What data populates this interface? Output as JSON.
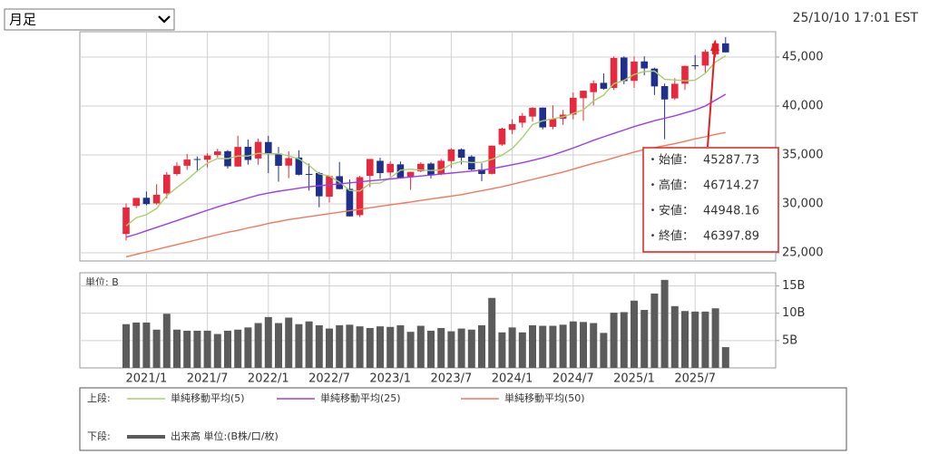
{
  "period_selector": "月足",
  "timestamp": "25/10/10 17:01 EST",
  "tooltip": {
    "labels": [
      "・始値：",
      "・高値：",
      "・安値：",
      "・終値："
    ]
  },
  "chart_data": [
    {
      "type": "candlestick",
      "up_color": "#e8283c",
      "down_color": "#1f2f8c",
      "legend_label": "上段:",
      "ylim": [
        24170,
        47590
      ],
      "yticks": [
        {
          "value": 25000,
          "label": "25,000"
        },
        {
          "value": 30000,
          "label": "30,000"
        },
        {
          "value": 35000,
          "label": "35,000"
        },
        {
          "value": 40000,
          "label": "40,000"
        },
        {
          "value": 45000,
          "label": "45,000"
        }
      ],
      "grid": true,
      "open": [
        26925,
        29798,
        30627,
        30055,
        31065,
        33054,
        33904,
        34584,
        34507,
        34992,
        35387,
        33820,
        35833,
        34640,
        36322,
        35152,
        33913,
        34742,
        33062,
        33156,
        30737,
        32829,
        31533,
        28855,
        32861,
        34403,
        33210,
        34039,
        32726,
        33335,
        34123,
        33061,
        34375,
        35577,
        34838,
        33515,
        33069,
        36062,
        37566,
        38296,
        38920,
        39839,
        37875,
        38695,
        39122,
        40799,
        41420,
        42370,
        41851,
        44953,
        42572,
        44558,
        43824,
        42035,
        40781,
        42273,
        44163,
        44129,
        45287.73,
        46403
      ],
      "high": [
        30046,
        30637,
        31272,
        32010,
        33259,
        34257,
        35091,
        34849,
        35172,
        35631,
        35510,
        36972,
        36566,
        36679,
        36953,
        35824,
        35372,
        35492,
        34118,
        33272,
        32910,
        34282,
        32505,
        32862,
        34590,
        34712,
        34342,
        34335,
        33291,
        34257,
        34257,
        34589,
        35679,
        35679,
        34978,
        34142,
        35954,
        37778,
        38653,
        39283,
        39890,
        39852,
        40077,
        39600,
        41376,
        41585,
        42628,
        43325,
        45074,
        45074,
        45054,
        45074,
        43922,
        42291,
        42843,
        44131,
        45206,
        45775,
        46714.27,
        47049
      ],
      "low": [
        26277,
        29571,
        29856,
        29928,
        30547,
        32879,
        33473,
        33272,
        33741,
        34731,
        33613,
        33785,
        34006,
        34006,
        33150,
        32273,
        32633,
        32913,
        31353,
        29653,
        30144,
        31492,
        28716,
        28661,
        31727,
        32573,
        32812,
        32581,
        31430,
        33235,
        32587,
        32920,
        33705,
        34029,
        33402,
        32327,
        33020,
        35939,
        37122,
        37800,
        38401,
        37612,
        37612,
        38079,
        38645,
        38499,
        40075,
        41660,
        41640,
        42232,
        41845,
        43137,
        41131,
        36612,
        40627,
        41646,
        43745,
        43340,
        44948.16,
        45470
      ],
      "close": [
        29638,
        30606,
        29983,
        30932,
        32982,
        33875,
        34529,
        34503,
        34935,
        35361,
        33844,
        35820,
        34484,
        36338,
        35132,
        33893,
        34678,
        32977,
        32990,
        30775,
        32845,
        31510,
        28726,
        32733,
        34590,
        33147,
        34086,
        32657,
        33274,
        34098,
        32908,
        34408,
        35560,
        34722,
        33508,
        33053,
        35951,
        37690,
        38150,
        38996,
        39807,
        37816,
        38686,
        39119,
        40843,
        41563,
        42330,
        41763,
        44911,
        42544,
        44545,
        43841,
        42002,
        40669,
        42270,
        44095,
        44131,
        45545,
        46397.89,
        45480
      ],
      "series": [
        {
          "name": "単純移動平均(5)",
          "color": "#a9cf6e",
          "values": [
            27756,
            28592,
            28902,
            29532,
            30828,
            31676,
            32460,
            33364,
            34165,
            34641,
            34634,
            34893,
            34889,
            35169,
            35124,
            35133,
            34905,
            34604,
            33934,
            33063,
            32853,
            32219,
            31369,
            31318,
            32081,
            32141,
            32656,
            33443,
            33551,
            33452,
            33405,
            33469,
            34050,
            34339,
            34221,
            34250,
            34559,
            34985,
            35670,
            36768,
            38119,
            38492,
            38691,
            38885,
            39254,
            39605,
            40508,
            41124,
            42282,
            42622,
            43219,
            43521,
            43569,
            42720,
            42665,
            42575,
            42633,
            43342,
            44488,
            45130
          ]
        },
        {
          "name": "単純移動平均(25)",
          "color": "#9b3cf0",
          "values": [
            26600,
            26900,
            27250,
            27600,
            27950,
            28300,
            28650,
            29000,
            29350,
            29700,
            30000,
            30300,
            30600,
            30900,
            31100,
            31300,
            31450,
            31600,
            31750,
            31850,
            31950,
            32050,
            32150,
            32250,
            32350,
            32450,
            32550,
            32650,
            32750,
            32850,
            32950,
            33050,
            33150,
            33250,
            33350,
            33450,
            33600,
            33800,
            34000,
            34200,
            34450,
            34700,
            35000,
            35350,
            35700,
            36100,
            36500,
            36850,
            37200,
            37550,
            37900,
            38200,
            38500,
            38750,
            39000,
            39300,
            39600,
            40000,
            40600,
            41200
          ]
        },
        {
          "name": "単純移動平均(50)",
          "color": "#f2775e",
          "values": [
            24600,
            24850,
            25100,
            25350,
            25600,
            25850,
            26100,
            26350,
            26600,
            26850,
            27100,
            27300,
            27550,
            27750,
            28000,
            28200,
            28400,
            28550,
            28700,
            28850,
            29000,
            29150,
            29300,
            29450,
            29600,
            29750,
            29900,
            30050,
            30200,
            30350,
            30500,
            30650,
            30800,
            30950,
            31150,
            31350,
            31550,
            31750,
            32000,
            32250,
            32500,
            32750,
            33000,
            33250,
            33550,
            33850,
            34150,
            34400,
            34700,
            35000,
            35300,
            35550,
            35750,
            35950,
            36150,
            36400,
            36650,
            36850,
            37100,
            37300
          ]
        }
      ]
    },
    {
      "type": "bar",
      "unit_label": "単位: B",
      "legend_label": "下段:",
      "ylim": [
        0,
        17.4
      ],
      "yticks": [
        {
          "value": 5,
          "label": "5B"
        },
        {
          "value": 10,
          "label": "10B"
        },
        {
          "value": 15,
          "label": "15B"
        }
      ],
      "grid": true,
      "categories": [
        null,
        null,
        "2021/1",
        null,
        null,
        null,
        null,
        null,
        "2021/7",
        null,
        null,
        null,
        null,
        null,
        "2022/1",
        null,
        null,
        null,
        null,
        null,
        "2022/7",
        null,
        null,
        null,
        null,
        null,
        "2023/1",
        null,
        null,
        null,
        null,
        null,
        "2023/7",
        null,
        null,
        null,
        null,
        null,
        "2024/1",
        null,
        null,
        null,
        null,
        null,
        "2024/7",
        null,
        null,
        null,
        null,
        null,
        "2025/1",
        null,
        null,
        null,
        null,
        null,
        "2025/7",
        null,
        null,
        null
      ],
      "series": [
        {
          "name": "出来高 単位:(B株/口/枚)",
          "color": "#5b5b5b",
          "values": [
            8.0,
            8.3,
            8.3,
            7.0,
            9.9,
            7.0,
            6.8,
            6.8,
            6.8,
            6.2,
            6.8,
            7.0,
            7.4,
            8.2,
            9.3,
            8.2,
            9.2,
            8.0,
            8.5,
            7.8,
            7.2,
            7.8,
            7.9,
            7.6,
            7.3,
            7.6,
            7.5,
            7.8,
            6.6,
            7.7,
            6.8,
            7.3,
            6.7,
            7.2,
            7.0,
            7.8,
            12.8,
            6.5,
            7.4,
            6.5,
            7.8,
            7.7,
            7.7,
            7.9,
            8.5,
            8.4,
            8.2,
            6.4,
            10.1,
            10.2,
            12.3,
            10.6,
            13.6,
            16.1,
            11.3,
            10.4,
            10.3,
            10.3,
            10.9,
            3.8
          ]
        }
      ]
    }
  ]
}
